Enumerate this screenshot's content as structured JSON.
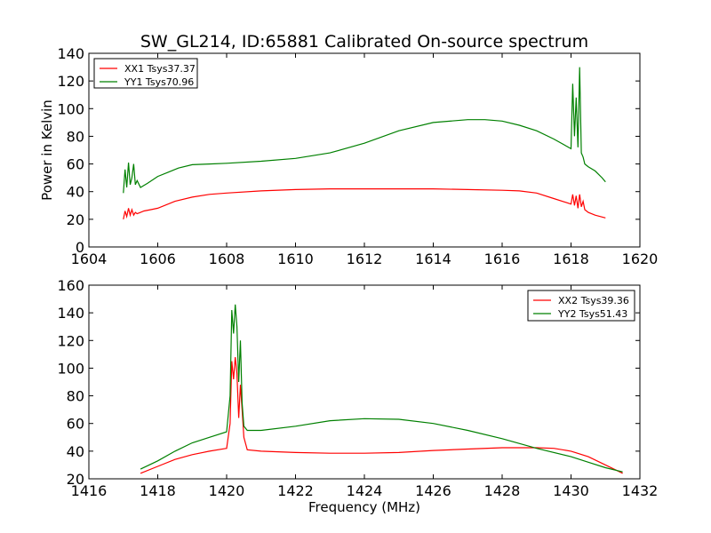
{
  "chart_data": [
    {
      "type": "line",
      "title": "SW_GL214, ID:65881 Calibrated On-source spectrum",
      "xlabel": "",
      "ylabel": "Power in Kelvin",
      "xlim": [
        1604,
        1620
      ],
      "ylim": [
        0,
        140
      ],
      "xticks": [
        "1604",
        "1606",
        "1608",
        "1610",
        "1612",
        "1614",
        "1616",
        "1618",
        "1620"
      ],
      "yticks": [
        "0",
        "20",
        "40",
        "60",
        "80",
        "100",
        "120",
        "140"
      ],
      "grid": false,
      "legend_position": "top-left",
      "series": [
        {
          "name": "XX1 Tsys37.37",
          "color": "#ff0000",
          "x": [
            1605.0,
            1605.05,
            1605.1,
            1605.15,
            1605.2,
            1605.25,
            1605.3,
            1605.35,
            1605.4,
            1605.5,
            1605.6,
            1605.8,
            1606.0,
            1606.5,
            1607.0,
            1607.5,
            1608.0,
            1609.0,
            1610.0,
            1611.0,
            1612.0,
            1613.0,
            1614.0,
            1615.0,
            1616.0,
            1616.5,
            1617.0,
            1617.5,
            1618.0,
            1618.05,
            1618.1,
            1618.15,
            1618.2,
            1618.25,
            1618.3,
            1618.35,
            1618.4,
            1618.5,
            1618.7,
            1619.0
          ],
          "y": [
            20,
            26,
            22,
            28,
            23,
            27,
            23,
            25,
            24,
            25,
            26,
            27,
            28,
            33,
            36,
            38,
            39,
            40.5,
            41.5,
            42,
            42,
            42,
            42,
            41.5,
            41,
            40.5,
            39,
            35,
            31,
            38,
            30,
            37,
            28,
            38,
            29,
            33,
            27,
            25,
            23,
            21
          ]
        },
        {
          "name": "YY1 Tsys70.96",
          "color": "#008000",
          "x": [
            1605.0,
            1605.05,
            1605.1,
            1605.15,
            1605.2,
            1605.25,
            1605.3,
            1605.35,
            1605.4,
            1605.5,
            1605.7,
            1606.0,
            1606.3,
            1606.6,
            1607.0,
            1607.5,
            1608.0,
            1609.0,
            1610.0,
            1611.0,
            1612.0,
            1613.0,
            1614.0,
            1615.0,
            1615.5,
            1616.0,
            1616.5,
            1617.0,
            1617.5,
            1618.0,
            1618.05,
            1618.1,
            1618.15,
            1618.2,
            1618.25,
            1618.3,
            1618.35,
            1618.4,
            1618.5,
            1618.7,
            1618.9,
            1619.0
          ],
          "y": [
            39,
            56,
            43,
            61,
            45,
            50,
            60,
            45,
            48,
            43,
            46,
            51,
            54,
            57,
            59.5,
            60,
            60.5,
            62,
            64,
            68,
            75,
            84,
            90,
            92,
            92,
            91,
            88,
            84,
            78,
            71,
            118,
            80,
            108,
            72,
            130,
            68,
            65,
            60,
            58,
            55,
            50,
            47
          ]
        }
      ]
    },
    {
      "type": "line",
      "xlabel": "Frequency (MHz)",
      "ylabel": "",
      "xlim": [
        1416,
        1432
      ],
      "ylim": [
        20,
        160
      ],
      "xticks": [
        "1416",
        "1418",
        "1420",
        "1422",
        "1424",
        "1426",
        "1428",
        "1430",
        "1432"
      ],
      "yticks": [
        "20",
        "40",
        "60",
        "80",
        "100",
        "120",
        "140",
        "160"
      ],
      "grid": false,
      "legend_position": "top-right",
      "series": [
        {
          "name": "XX2 Tsys39.36",
          "color": "#ff0000",
          "x": [
            1417.5,
            1418.0,
            1418.5,
            1419.0,
            1419.5,
            1420.0,
            1420.1,
            1420.15,
            1420.2,
            1420.25,
            1420.3,
            1420.35,
            1420.4,
            1420.45,
            1420.5,
            1420.6,
            1421.0,
            1422.0,
            1423.0,
            1424.0,
            1425.0,
            1426.0,
            1427.0,
            1428.0,
            1429.0,
            1429.5,
            1430.0,
            1430.5,
            1431.0,
            1431.5
          ],
          "y": [
            24,
            29,
            34,
            37.5,
            40,
            42,
            60,
            105,
            92,
            108,
            96,
            64,
            88,
            70,
            50,
            41,
            40,
            39,
            38.5,
            38.5,
            39,
            40.5,
            41.5,
            42.5,
            42.5,
            42,
            40,
            36,
            30,
            24
          ]
        },
        {
          "name": "YY2 Tsys51.43",
          "color": "#008000",
          "x": [
            1417.5,
            1418.0,
            1418.5,
            1419.0,
            1419.5,
            1420.0,
            1420.1,
            1420.15,
            1420.2,
            1420.25,
            1420.3,
            1420.35,
            1420.4,
            1420.45,
            1420.5,
            1420.6,
            1421.0,
            1422.0,
            1423.0,
            1424.0,
            1425.0,
            1426.0,
            1427.0,
            1428.0,
            1429.0,
            1430.0,
            1430.5,
            1431.0,
            1431.5
          ],
          "y": [
            27,
            33,
            40,
            46,
            50,
            54,
            80,
            142,
            125,
            146,
            130,
            90,
            120,
            75,
            58,
            55,
            55,
            58,
            62,
            63.5,
            63,
            60,
            55,
            49,
            42,
            36,
            32,
            28,
            25
          ]
        }
      ]
    }
  ]
}
